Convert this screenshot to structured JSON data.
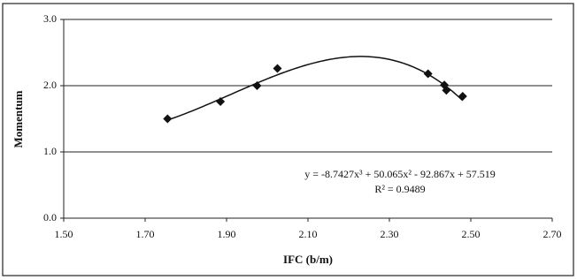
{
  "chart_data": {
    "type": "scatter",
    "x_label": "IFC (b/m)",
    "y_label": "Momentum",
    "x": [
      1.755,
      1.885,
      1.975,
      2.025,
      2.395,
      2.435,
      2.44,
      2.48
    ],
    "values": [
      1.5,
      1.76,
      2.0,
      2.26,
      2.18,
      2.01,
      1.93,
      1.84
    ],
    "color": "#111111",
    "xlim": [
      1.5,
      2.7
    ],
    "xticks": [
      {
        "value": 1.5,
        "label": "1.50"
      },
      {
        "value": 1.7,
        "label": "1.70"
      },
      {
        "value": 1.9,
        "label": "1.90"
      },
      {
        "value": 2.1,
        "label": "2.10"
      },
      {
        "value": 2.3,
        "label": "2.30"
      },
      {
        "value": 2.5,
        "label": "2.50"
      },
      {
        "value": 2.7,
        "label": "2.70"
      }
    ],
    "ylim": [
      0,
      3
    ],
    "yticks": [
      {
        "value": 0,
        "label": "0.0"
      },
      {
        "value": 1,
        "label": "1.0"
      },
      {
        "value": 2,
        "label": "2.0"
      },
      {
        "value": 3,
        "label": "3.0"
      }
    ],
    "grid": true,
    "trendline": {
      "coefficients": [
        -8.7427,
        50.065,
        -92.867,
        57.519
      ],
      "equation": "y = -8.7427x³ + 50.065x² - 92.867x + 57.519",
      "r_squared": "R² = 0.9489"
    }
  }
}
